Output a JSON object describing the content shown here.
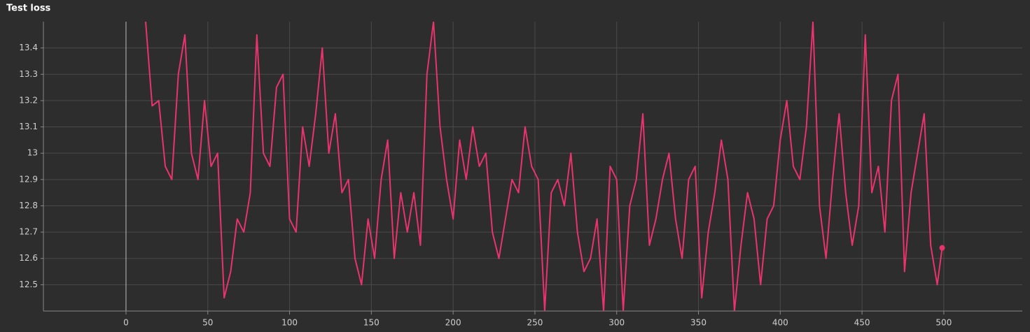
{
  "chart_data": {
    "type": "line",
    "title": "Test loss",
    "x": [
      12,
      16,
      20,
      24,
      28,
      32,
      36,
      40,
      44,
      48,
      52,
      56,
      60,
      64,
      68,
      72,
      76,
      80,
      84,
      88,
      92,
      96,
      100,
      104,
      108,
      112,
      116,
      120,
      124,
      128,
      132,
      136,
      140,
      144,
      148,
      152,
      156,
      160,
      164,
      168,
      172,
      176,
      180,
      184,
      188,
      192,
      196,
      200,
      204,
      208,
      212,
      216,
      220,
      224,
      228,
      232,
      236,
      240,
      244,
      248,
      252,
      256,
      260,
      264,
      268,
      272,
      276,
      280,
      284,
      288,
      292,
      296,
      300,
      304,
      308,
      312,
      316,
      320,
      324,
      328,
      332,
      336,
      340,
      344,
      348,
      352,
      356,
      360,
      364,
      368,
      372,
      376,
      380,
      384,
      388,
      392,
      396,
      400,
      404,
      408,
      412,
      416,
      420,
      424,
      428,
      432,
      436,
      440,
      444,
      448,
      452,
      456,
      460,
      464,
      468,
      472,
      476,
      480,
      484,
      488,
      492,
      496,
      499
    ],
    "series": [
      {
        "name": "Test loss",
        "color": "#e8336e",
        "values": [
          13.5,
          13.18,
          13.2,
          12.95,
          12.9,
          13.3,
          13.45,
          13.0,
          12.9,
          13.2,
          12.95,
          13.0,
          12.45,
          12.55,
          12.75,
          12.7,
          12.85,
          13.45,
          13.0,
          12.95,
          13.25,
          13.3,
          12.75,
          12.7,
          13.1,
          12.95,
          13.15,
          13.4,
          13.0,
          13.15,
          12.85,
          12.9,
          12.6,
          12.5,
          12.75,
          12.6,
          12.9,
          13.05,
          12.6,
          12.85,
          12.7,
          12.85,
          12.65,
          13.3,
          13.5,
          13.1,
          12.9,
          12.75,
          13.05,
          12.9,
          13.1,
          12.95,
          13.0,
          12.7,
          12.6,
          12.75,
          12.9,
          12.85,
          13.1,
          12.95,
          12.9,
          12.4,
          12.85,
          12.9,
          12.8,
          13.0,
          12.7,
          12.55,
          12.6,
          12.75,
          12.4,
          12.95,
          12.9,
          12.4,
          12.8,
          12.9,
          13.15,
          12.65,
          12.75,
          12.9,
          13.0,
          12.75,
          12.6,
          12.9,
          12.95,
          12.45,
          12.7,
          12.85,
          13.05,
          12.9,
          12.4,
          12.65,
          12.85,
          12.75,
          12.5,
          12.75,
          12.8,
          13.05,
          13.2,
          12.95,
          12.9,
          13.1,
          13.5,
          12.8,
          12.6,
          12.9,
          13.15,
          12.85,
          12.65,
          12.8,
          13.45,
          12.85,
          12.95,
          12.7,
          13.2,
          13.3,
          12.55,
          12.85,
          13.0,
          13.15,
          12.65,
          12.5,
          12.64
        ]
      }
    ],
    "xlim": [
      -50.5,
      548
    ],
    "xticks": [
      0,
      50,
      100,
      150,
      200,
      250,
      300,
      350,
      400,
      450,
      500
    ],
    "ylim": [
      12.4,
      13.5
    ],
    "yticks": [
      12.5,
      12.6,
      12.7,
      12.8,
      12.9,
      13,
      13.1,
      13.2,
      13.3,
      13.4
    ],
    "grid": true
  }
}
